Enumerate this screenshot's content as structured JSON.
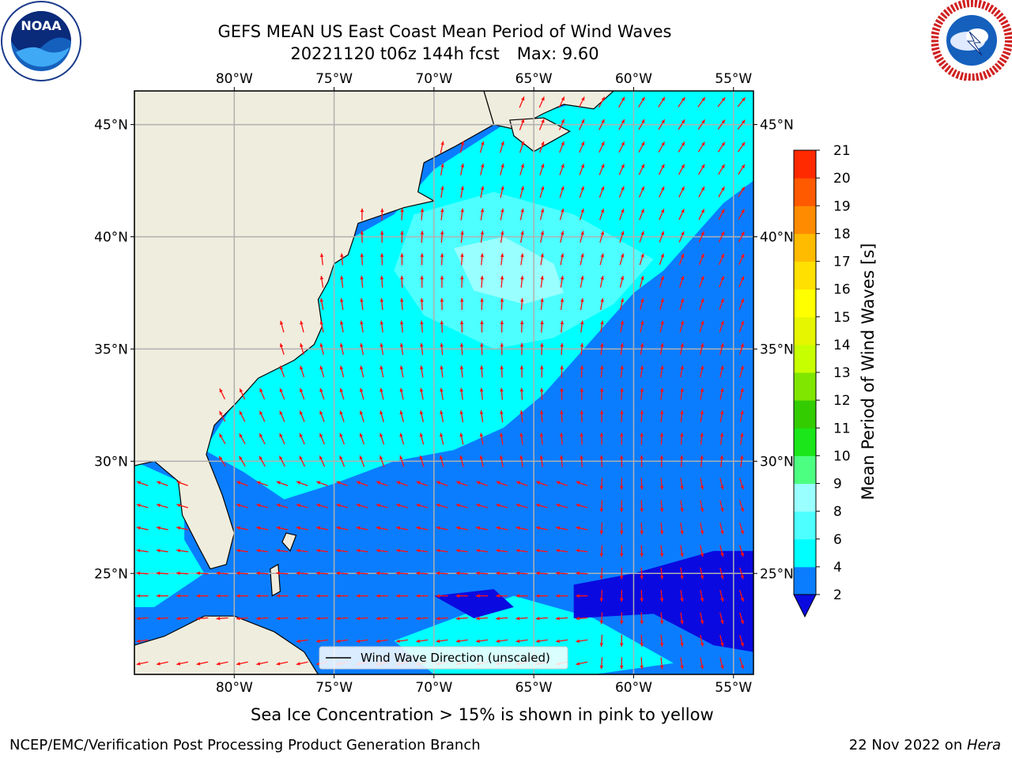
{
  "title": {
    "line1": "GEFS MEAN US East Coast Mean Period of Wind Waves",
    "line2_run": "20221120 t06z 144h fcst",
    "line2_max": "Max: 9.60"
  },
  "map": {
    "lon_range": [
      -85,
      -54
    ],
    "lat_range": [
      20.5,
      46.5
    ],
    "lon_ticks": [
      -80,
      -75,
      -70,
      -65,
      -60,
      -55
    ],
    "lon_tick_labels": [
      "80°W",
      "75°W",
      "70°W",
      "65°W",
      "60°W",
      "55°W"
    ],
    "lat_ticks": [
      25,
      30,
      35,
      40,
      45
    ],
    "lat_tick_labels": [
      "25°N",
      "30°N",
      "35°N",
      "40°N",
      "45°N"
    ],
    "land_color": "#efedde",
    "grid": true,
    "legend": {
      "label": "Wind Wave Direction (unscaled)",
      "placement": "bottom-center"
    },
    "max_value": 9.6
  },
  "colorbar": {
    "title": "Mean Period of Wind Waves [s]",
    "levels": [
      2,
      4,
      6,
      8,
      9,
      10,
      11,
      12,
      13,
      14,
      15,
      16,
      17,
      18,
      19,
      20,
      21
    ],
    "level_labels": [
      "2",
      "4",
      "6",
      "8",
      "9",
      "10",
      "11",
      "12",
      "13",
      "14",
      "15",
      "16",
      "17",
      "18",
      "19",
      "20",
      "21"
    ],
    "colors": [
      "#0a7dff",
      "#00ffff",
      "#4dffff",
      "#99ffff",
      "#4dff80",
      "#1ae61a",
      "#33cc00",
      "#80e600",
      "#c8ff00",
      "#e6f500",
      "#ffff00",
      "#ffe000",
      "#ffbb00",
      "#ff8c00",
      "#ff5a00",
      "#ff2a00"
    ],
    "under_color": "#0a0ae0"
  },
  "logos": {
    "noaa_text": "NOAA"
  },
  "footer": {
    "sea_ice_note": "Sea Ice Concentration > 15% is shown in pink to yellow",
    "left": "NCEP/EMC/Verification Post Processing Product Generation Branch",
    "date": "22 Nov 2022 on ",
    "host": "Hera"
  }
}
